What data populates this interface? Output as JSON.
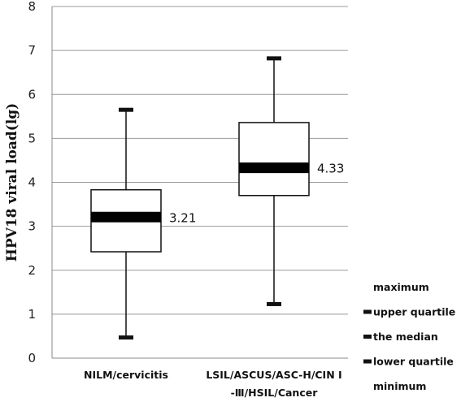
{
  "chart_data": {
    "type": "boxplot",
    "ylabel": "HPV18  viral load(lg)",
    "ylim": [
      0,
      8
    ],
    "yticks": [
      "0",
      "1",
      "2",
      "3",
      "4",
      "5",
      "6",
      "7",
      "8"
    ],
    "grid": true,
    "categories": [
      [
        "NILM/cervicitis"
      ],
      [
        "LSIL/ASCUS/ASC-H/CIN Ⅰ",
        "-Ⅲ/HSIL/Cancer"
      ]
    ],
    "boxes": [
      {
        "min": 0.47,
        "q1": 2.42,
        "median": 3.21,
        "q3": 3.83,
        "max": 5.65,
        "median_label": "3.21"
      },
      {
        "min": 1.23,
        "q1": 3.7,
        "median": 4.33,
        "q3": 5.36,
        "max": 6.82,
        "median_label": "4.33"
      }
    ],
    "legend": {
      "position": "bottom-right",
      "items": [
        "maximum",
        "upper quartile",
        "the median",
        "lower quartile",
        "minimum"
      ]
    }
  }
}
